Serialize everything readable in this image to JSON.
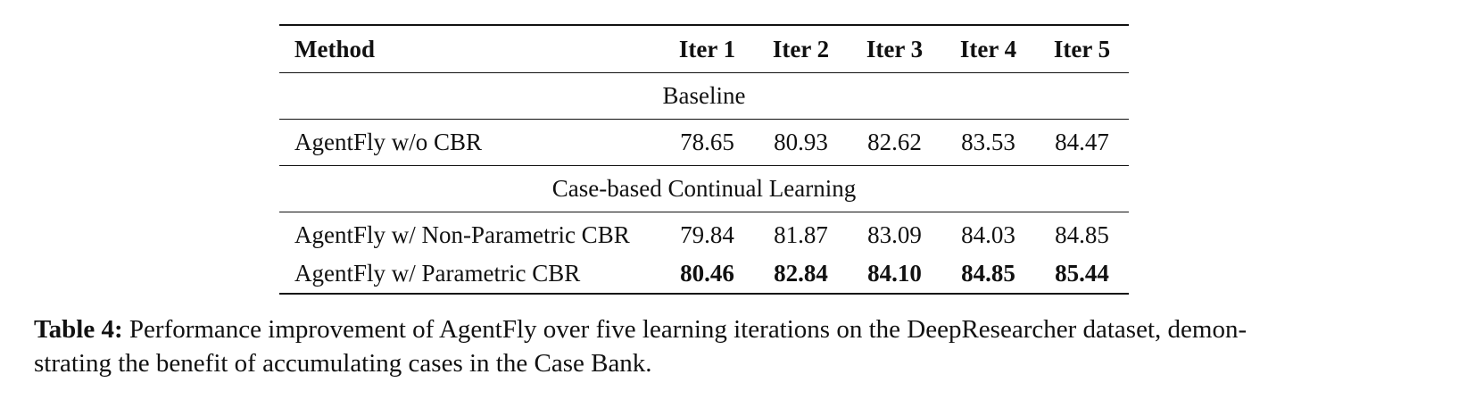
{
  "table": {
    "header": [
      "Method",
      "Iter 1",
      "Iter 2",
      "Iter 3",
      "Iter 4",
      "Iter 5"
    ],
    "sections": [
      {
        "title": "Baseline",
        "rows": [
          [
            "AgentFly w/o CBR",
            "78.65",
            "80.93",
            "82.62",
            "83.53",
            "84.47"
          ]
        ]
      },
      {
        "title": "Case-based Continual Learning",
        "rows": [
          [
            "AgentFly w/ Non-Parametric CBR",
            "79.84",
            "81.87",
            "83.09",
            "84.03",
            "84.85"
          ],
          [
            "AgentFly w/ Parametric CBR",
            "80.46",
            "82.84",
            "84.10",
            "84.85",
            "85.44"
          ]
        ]
      }
    ]
  },
  "caption": {
    "label": "Table 4:",
    "lines": [
      "Performance improvement of AgentFly over five learning iterations on the DeepResearcher dataset, demon-",
      "strating the benefit of accumulating cases in the Case Bank."
    ]
  }
}
